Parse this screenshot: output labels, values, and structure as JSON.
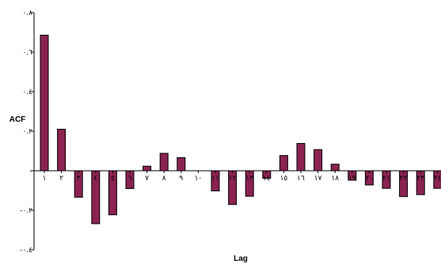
{
  "chart_data": {
    "type": "bar",
    "xlabel": "Lag",
    "ylabel": "ACF",
    "ylim": [
      -0.4,
      0.8
    ],
    "ytick_values": [
      -0.4,
      -0.2,
      0,
      0.2,
      0.4,
      0.6,
      0.8
    ],
    "ytick_labels": [
      "-۰.٤",
      "-۰.٢",
      "۰",
      "۰.٢",
      "۰.٤",
      "۰.٦",
      "۰.٨"
    ],
    "categories": [
      "١",
      "٢",
      "٣",
      "٤",
      "٥",
      "٦",
      "٧",
      "٨",
      "٩",
      "١٠",
      "١١",
      "١٢",
      "١٣",
      "١٤",
      "١٥",
      "١٦",
      "١٧",
      "١٨",
      "١٩",
      "٢٠",
      "٢١",
      "٢٢",
      "٢٣",
      "٢٤"
    ],
    "values": [
      0.686,
      0.21,
      -0.134,
      -0.268,
      -0.223,
      -0.09,
      0.023,
      0.088,
      0.066,
      0.0,
      -0.102,
      -0.171,
      -0.129,
      -0.038,
      0.077,
      0.138,
      0.107,
      0.033,
      -0.048,
      -0.072,
      -0.089,
      -0.131,
      -0.121,
      -0.089
    ],
    "bar_color": "#8b2252",
    "grid": false,
    "legend": "none"
  }
}
